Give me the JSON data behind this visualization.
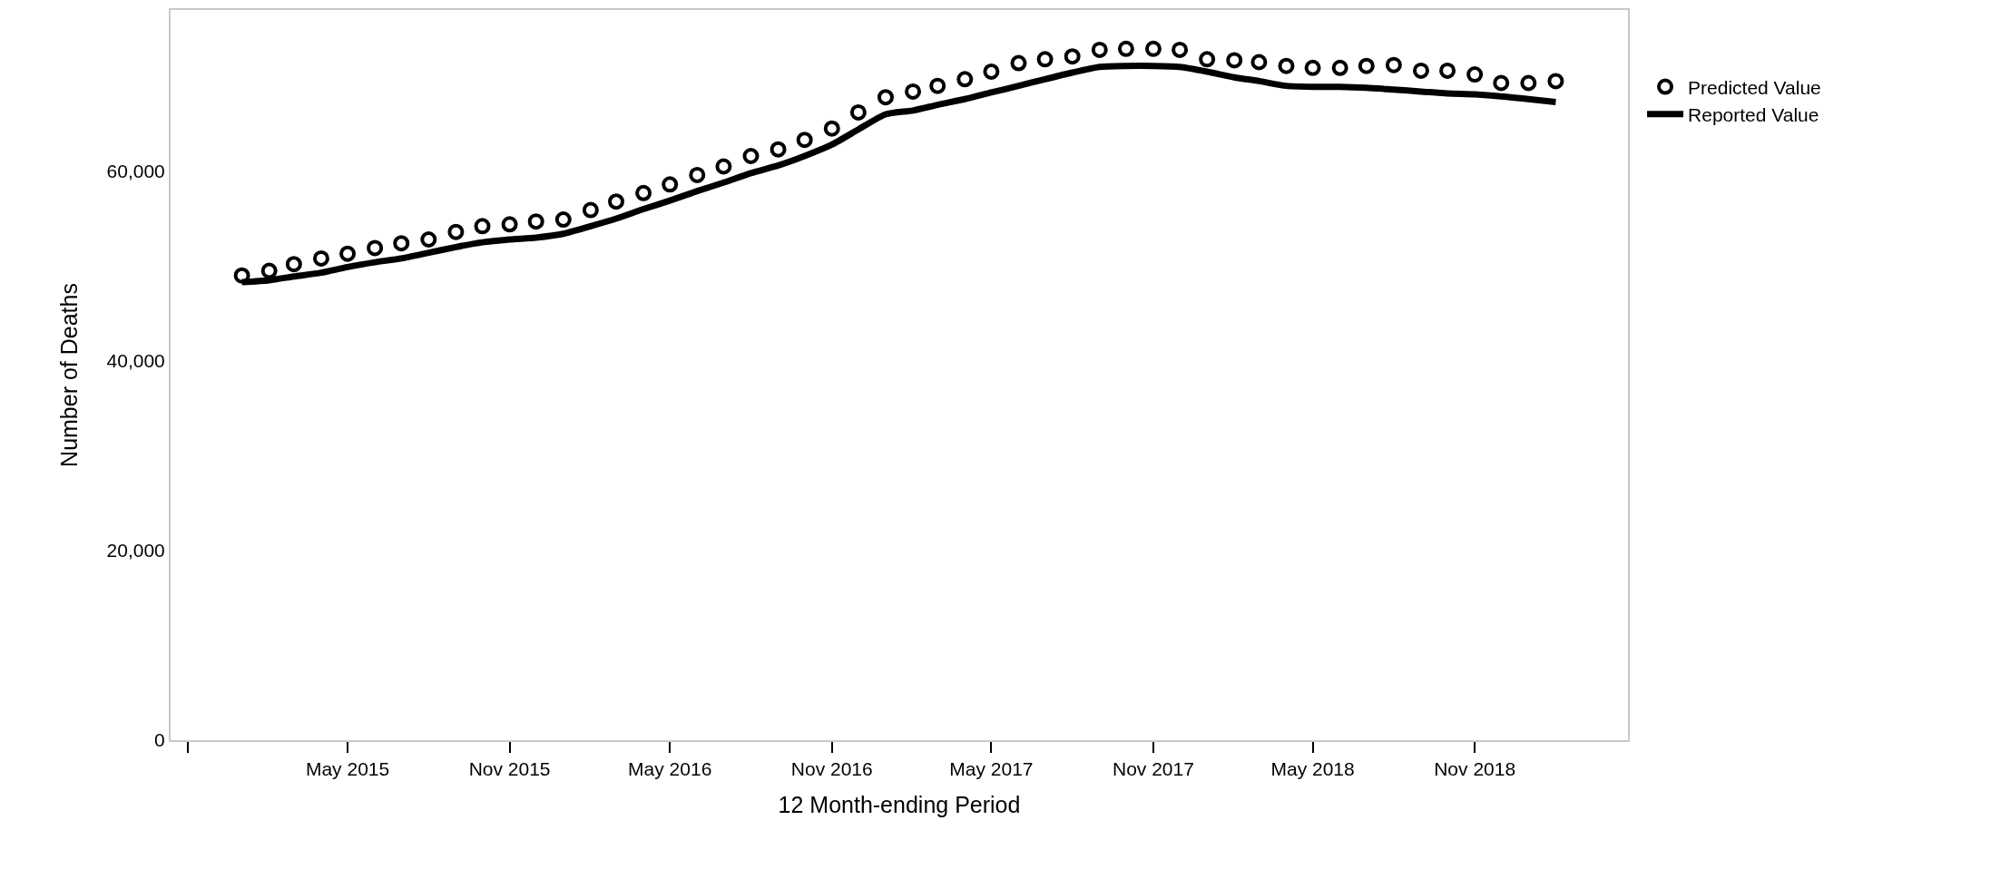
{
  "chart_data": {
    "type": "line",
    "xlabel": "12 Month-ending Period",
    "ylabel": "Number of Deaths",
    "x": [
      "2015-01",
      "2015-02",
      "2015-03",
      "2015-04",
      "2015-05",
      "2015-06",
      "2015-07",
      "2015-08",
      "2015-09",
      "2015-10",
      "2015-11",
      "2015-12",
      "2016-01",
      "2016-02",
      "2016-03",
      "2016-04",
      "2016-05",
      "2016-06",
      "2016-07",
      "2016-08",
      "2016-09",
      "2016-10",
      "2016-11",
      "2016-12",
      "2017-01",
      "2017-02",
      "2017-03",
      "2017-04",
      "2017-05",
      "2017-06",
      "2017-07",
      "2017-08",
      "2017-09",
      "2017-10",
      "2017-11",
      "2017-12",
      "2018-01",
      "2018-02",
      "2018-03",
      "2018-04",
      "2018-05",
      "2018-06",
      "2018-07",
      "2018-08",
      "2018-09",
      "2018-10",
      "2018-11",
      "2018-12",
      "2019-01",
      "2019-02"
    ],
    "series": [
      {
        "name": "Predicted Value",
        "type": "scatter",
        "marker": "circle",
        "color": "#000000",
        "values": [
          49000,
          49500,
          50200,
          50800,
          51300,
          51900,
          52400,
          52800,
          53600,
          54200,
          54400,
          54700,
          54900,
          55900,
          56800,
          57700,
          58600,
          59600,
          60500,
          61600,
          62300,
          63300,
          64500,
          66200,
          67800,
          68400,
          69000,
          69700,
          70500,
          71400,
          71800,
          72100,
          72800,
          72900,
          72900,
          72800,
          71800,
          71700,
          71500,
          71100,
          70900,
          70900,
          71100,
          71200,
          70600,
          70600,
          70200,
          69300,
          69300,
          69500
        ]
      },
      {
        "name": "Reported Value",
        "marker": "none",
        "line_style": "solid",
        "color": "#000000",
        "values": [
          48300,
          48500,
          48900,
          49300,
          49900,
          50400,
          50800,
          51400,
          52000,
          52500,
          52800,
          53000,
          53400,
          54200,
          55000,
          56000,
          56900,
          57900,
          58800,
          59800,
          60600,
          61600,
          62800,
          64400,
          66000,
          66400,
          67000,
          67600,
          68300,
          69000,
          69700,
          70400,
          71000,
          71100,
          71100,
          71000,
          70500,
          69900,
          69500,
          69000,
          68900,
          68900,
          68800,
          68600,
          68400,
          68200,
          68100,
          67900,
          67600,
          67300
        ]
      }
    ],
    "xlim": [
      "2014-10-12",
      "2019-04-24"
    ],
    "xticks": [
      {
        "value": "2014-11",
        "label": null
      },
      {
        "value": "2015-05",
        "label": "May 2015"
      },
      {
        "value": "2015-11",
        "label": "Nov 2015"
      },
      {
        "value": "2016-05",
        "label": "May 2016"
      },
      {
        "value": "2016-11",
        "label": "Nov 2016"
      },
      {
        "value": "2017-05",
        "label": "May 2017"
      },
      {
        "value": "2017-11",
        "label": "Nov 2017"
      },
      {
        "value": "2018-05",
        "label": "May 2018"
      },
      {
        "value": "2018-11",
        "label": "Nov 2018"
      }
    ],
    "ylim": [
      0,
      77000
    ],
    "yticks": [
      {
        "value": 0,
        "label": "0"
      },
      {
        "value": 20000,
        "label": "20,000"
      },
      {
        "value": 40000,
        "label": "40,000"
      },
      {
        "value": 60000,
        "label": "60,000"
      }
    ],
    "grid": false,
    "legend": "right"
  }
}
